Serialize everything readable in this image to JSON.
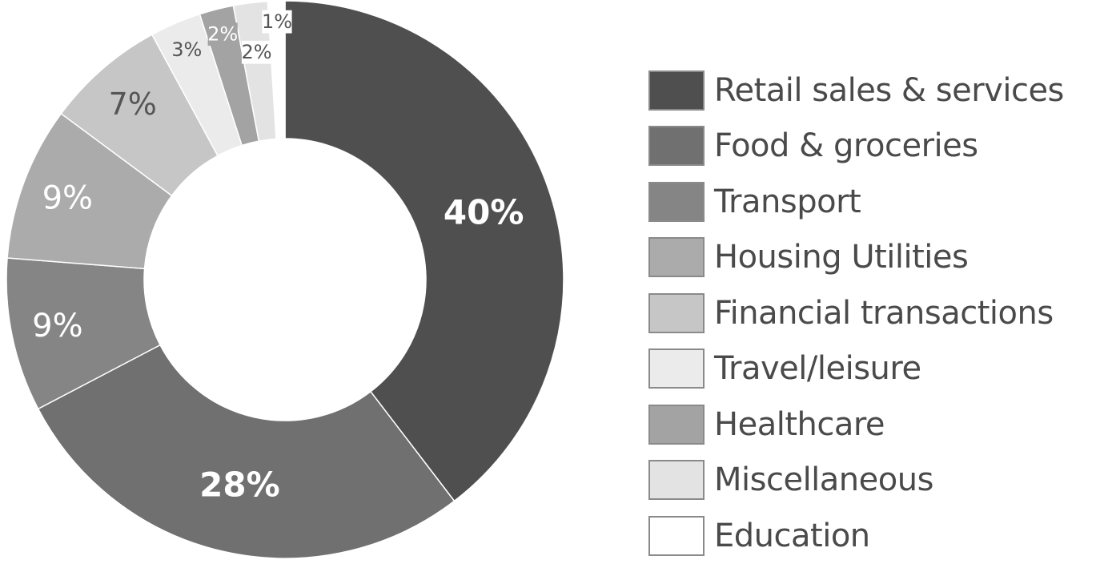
{
  "chart_data": {
    "type": "pie",
    "variant": "donut",
    "legend_position": "right",
    "slices": [
      {
        "label": "Retail sales & services",
        "value": 40,
        "value_label": "40%",
        "color": "#4f4f4f",
        "label_color": "#ffffff"
      },
      {
        "label": "Food & groceries",
        "value": 28,
        "value_label": "28%",
        "color": "#707070",
        "label_color": "#ffffff"
      },
      {
        "label": "Transport",
        "value": 9,
        "value_label": "9%",
        "color": "#858585",
        "label_color": "#ffffff"
      },
      {
        "label": "Housing Utilities",
        "value": 9,
        "value_label": "9%",
        "color": "#ababab",
        "label_color": "#ffffff"
      },
      {
        "label": "Financial transactions",
        "value": 7,
        "value_label": "7%",
        "color": "#c6c6c6",
        "label_color": "#555555"
      },
      {
        "label": "Travel/leisure",
        "value": 3,
        "value_label": "3%",
        "color": "#ebebeb",
        "label_color": "#555555"
      },
      {
        "label": "Healthcare",
        "value": 2,
        "value_label": "2%",
        "color": "#a3a3a3",
        "label_color": "#ffffff"
      },
      {
        "label": "Miscellaneous",
        "value": 2,
        "value_label": "2%",
        "color": "#e3e3e3",
        "label_color": "#555555"
      },
      {
        "label": "Education",
        "value": 1,
        "value_label": "1%",
        "color": "#ffffff",
        "label_color": "#555555"
      }
    ]
  }
}
